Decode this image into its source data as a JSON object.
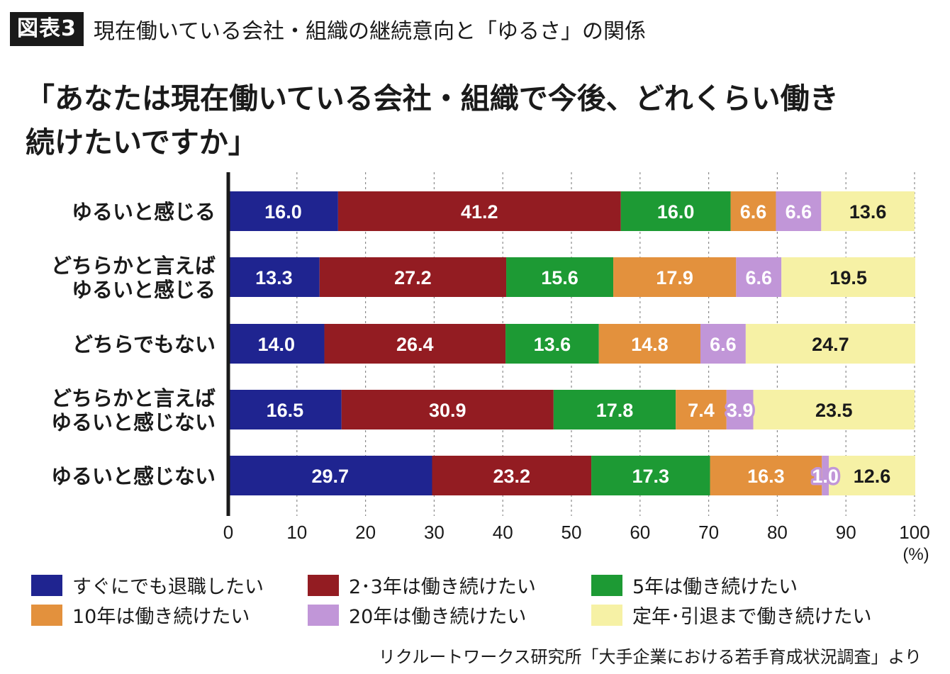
{
  "header": {
    "badge": "図表3",
    "title": "現在働いている会社・組織の継続意向と「ゆるさ」の関係"
  },
  "question": {
    "line1": "「あなたは現在働いている会社・組織で今後、どれくらい働き",
    "line2": "続けたいですか」"
  },
  "chart_data": {
    "type": "bar",
    "orientation": "horizontal",
    "stacked": true,
    "categories": [
      [
        "ゆるいと感じる"
      ],
      [
        "どちらかと言えば",
        "ゆるいと感じる"
      ],
      [
        "どちらでもない"
      ],
      [
        "どちらかと言えば",
        "ゆるいと感じない"
      ],
      [
        "ゆるいと感じない"
      ]
    ],
    "series": [
      {
        "name": "すぐにでも退職したい",
        "color": "#1f2490",
        "values": [
          16.0,
          13.3,
          14.0,
          16.5,
          29.7
        ]
      },
      {
        "name": "2･3年は働き続けたい",
        "color": "#931c22",
        "values": [
          41.2,
          27.2,
          26.4,
          30.9,
          23.2
        ]
      },
      {
        "name": "5年は働き続けたい",
        "color": "#1d9a34",
        "values": [
          16.0,
          15.6,
          13.6,
          17.8,
          17.3
        ]
      },
      {
        "name": "10年は働き続けたい",
        "color": "#e3913d",
        "values": [
          6.6,
          17.9,
          14.8,
          7.4,
          16.3
        ]
      },
      {
        "name": "20年は働き続けたい",
        "color": "#c196d8",
        "values": [
          6.6,
          6.6,
          6.6,
          3.9,
          1.0
        ]
      },
      {
        "name": "定年･引退まで働き続けたい",
        "color": "#f6f1a5",
        "values": [
          13.6,
          19.5,
          24.7,
          23.5,
          12.6
        ]
      }
    ],
    "value_labels": [
      [
        "16.0",
        "41.2",
        "16.0",
        "6.6",
        "6.6",
        "13.6"
      ],
      [
        "13.3",
        "27.2",
        "15.6",
        "17.9",
        "6.6",
        "19.5"
      ],
      [
        "14.0",
        "26.4",
        "13.6",
        "14.8",
        "6.6",
        "24.7"
      ],
      [
        "16.5",
        "30.9",
        "17.8",
        "7.4",
        "3.9",
        "23.5"
      ],
      [
        "29.7",
        "23.2",
        "17.3",
        "16.3",
        "1.0",
        "12.6"
      ]
    ],
    "xlim": [
      0,
      100
    ],
    "xticks": [
      "0",
      "10",
      "20",
      "30",
      "40",
      "50",
      "60",
      "70",
      "80",
      "90",
      "100"
    ],
    "xunit": "(%)",
    "grid": "vertical dashed",
    "legend_position": "bottom"
  },
  "source": "リクルートワークス研究所「大手企業における若手育成状況調査」より"
}
